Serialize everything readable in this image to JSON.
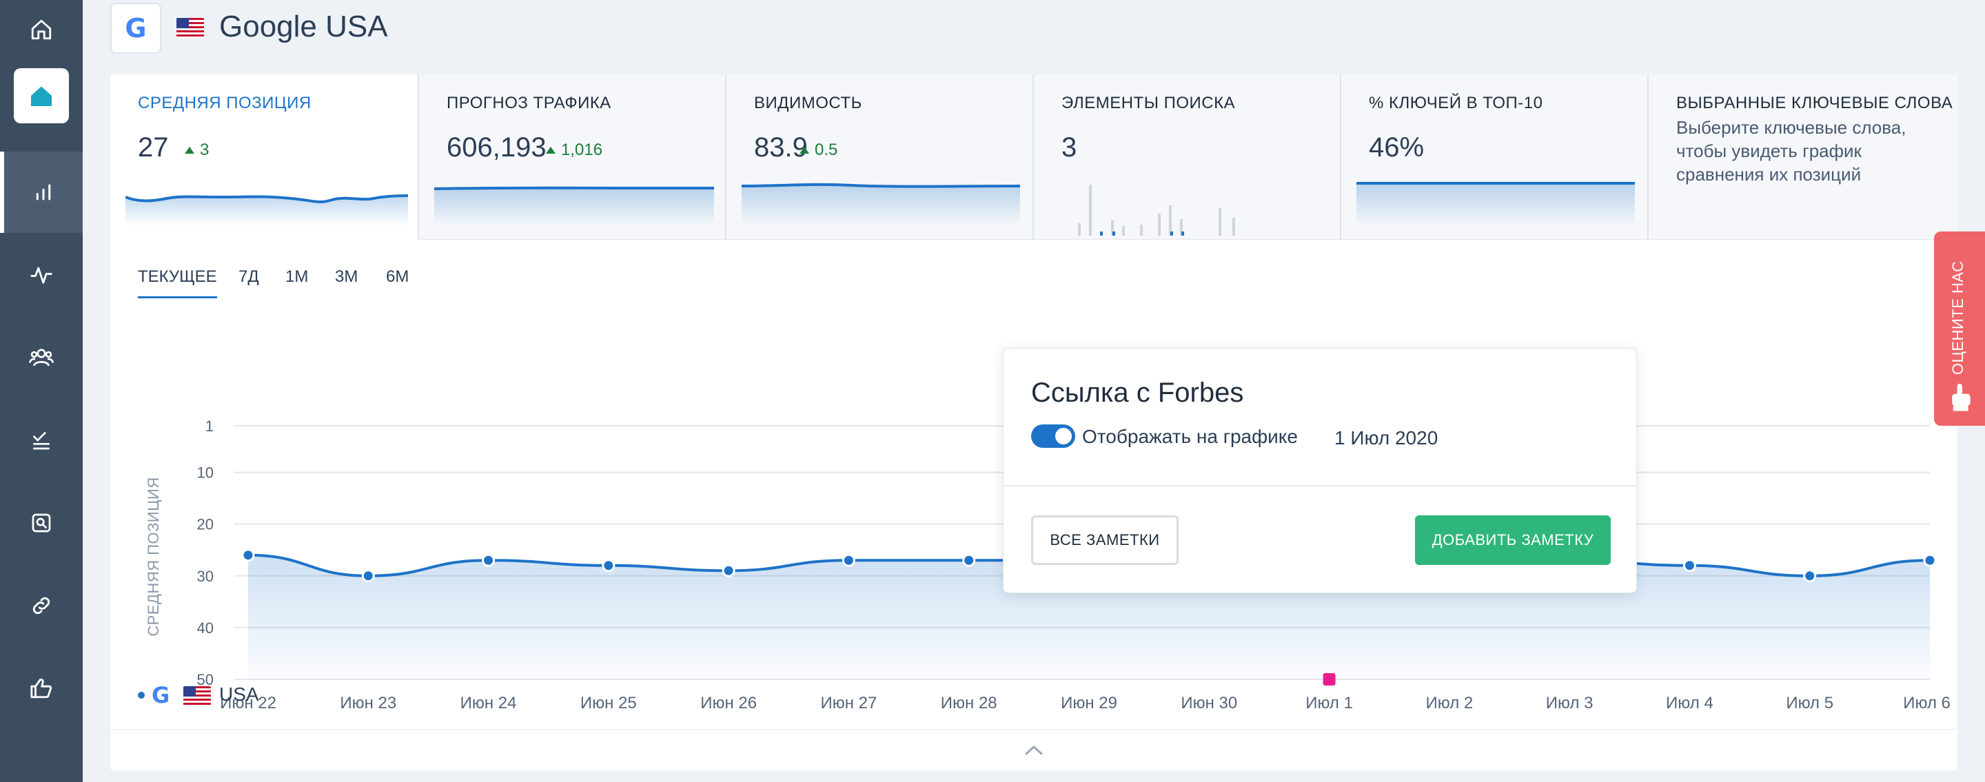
{
  "header": {
    "title": "Google USA",
    "engine_icon": "google-g-icon",
    "engine_glyph": "G",
    "flag_icon": "usa-flag-icon"
  },
  "sidebar": {
    "items": [
      {
        "name": "home",
        "icon": "home-icon"
      },
      {
        "name": "project",
        "icon": "project-house-icon"
      },
      {
        "name": "rankings",
        "icon": "bar-chart-icon",
        "active": true
      },
      {
        "name": "activity",
        "icon": "pulse-icon"
      },
      {
        "name": "competitors",
        "icon": "users-icon"
      },
      {
        "name": "tasks",
        "icon": "checklist-icon"
      },
      {
        "name": "site-audit",
        "icon": "search-box-icon"
      },
      {
        "name": "backlinks",
        "icon": "link-icon"
      },
      {
        "name": "feedback",
        "icon": "thumbs-up-icon"
      }
    ]
  },
  "metrics": [
    {
      "label": "СРЕДНЯЯ ПОЗИЦИЯ",
      "value": "27",
      "delta": "3"
    },
    {
      "label": "ПРОГНОЗ ТРАФИКА",
      "value": "606,193",
      "delta": "1,016"
    },
    {
      "label": "ВИДИМОСТЬ",
      "value": "83.9",
      "delta": "0.5"
    },
    {
      "label": "ЭЛЕМЕНТЫ ПОИСКА",
      "value": "3"
    },
    {
      "label": "% КЛЮЧЕЙ В ТОП-10",
      "value": "46%"
    },
    {
      "label": "ВЫБРАННЫЕ КЛЮЧЕВЫЕ СЛОВА",
      "text": "Выберите ключевые слова, чтобы увидеть график сравнения их позиций"
    }
  ],
  "tabs": [
    "ТЕКУЩЕЕ",
    "7Д",
    "1М",
    "3М",
    "6М"
  ],
  "active_tab": "ТЕКУЩЕЕ",
  "chart_data": {
    "type": "line",
    "ylabel": "СРЕДНЯЯ ПОЗИЦИЯ",
    "ylim": [
      1,
      50
    ],
    "y_inverted": true,
    "yticks": [
      1,
      10,
      20,
      30,
      40,
      50
    ],
    "categories": [
      "Июн 22",
      "Июн 23",
      "Июн 24",
      "Июн 25",
      "Июн 26",
      "Июн 27",
      "Июн 28",
      "Июн 29",
      "Июн 30",
      "Июл 1",
      "Июл 2",
      "Июл 3",
      "Июл 4",
      "Июл 5",
      "Июл 6"
    ],
    "series": [
      {
        "name": "USA",
        "values": [
          26,
          30,
          27,
          28,
          29,
          27,
          27,
          27,
          27,
          27,
          27,
          27,
          28,
          30,
          27
        ]
      }
    ],
    "grid": true,
    "note_marker": "Июл 1",
    "line_color": "#1e73c8",
    "marker_color": "#e91e8c"
  },
  "legend": {
    "label": "USA"
  },
  "note_popup": {
    "title": "Ссылка с Forbes",
    "toggle_label": "Отображать на графике",
    "toggle_on": true,
    "date": "1 Июл 2020",
    "all_notes_button": "ВСЕ ЗАМЕТКИ",
    "add_note_button": "ДОБАВИТЬ ЗАМЕТКУ"
  },
  "rate_us": {
    "label": "ОЦЕНИТЕ НАС",
    "icon": "hand-pointer-icon"
  },
  "colors": {
    "sidebar": "#3d4d60",
    "accent": "#1e73c8",
    "positive": "#1e7d3c",
    "add_button": "#2fb67c",
    "rate_tab": "#ef6468"
  }
}
